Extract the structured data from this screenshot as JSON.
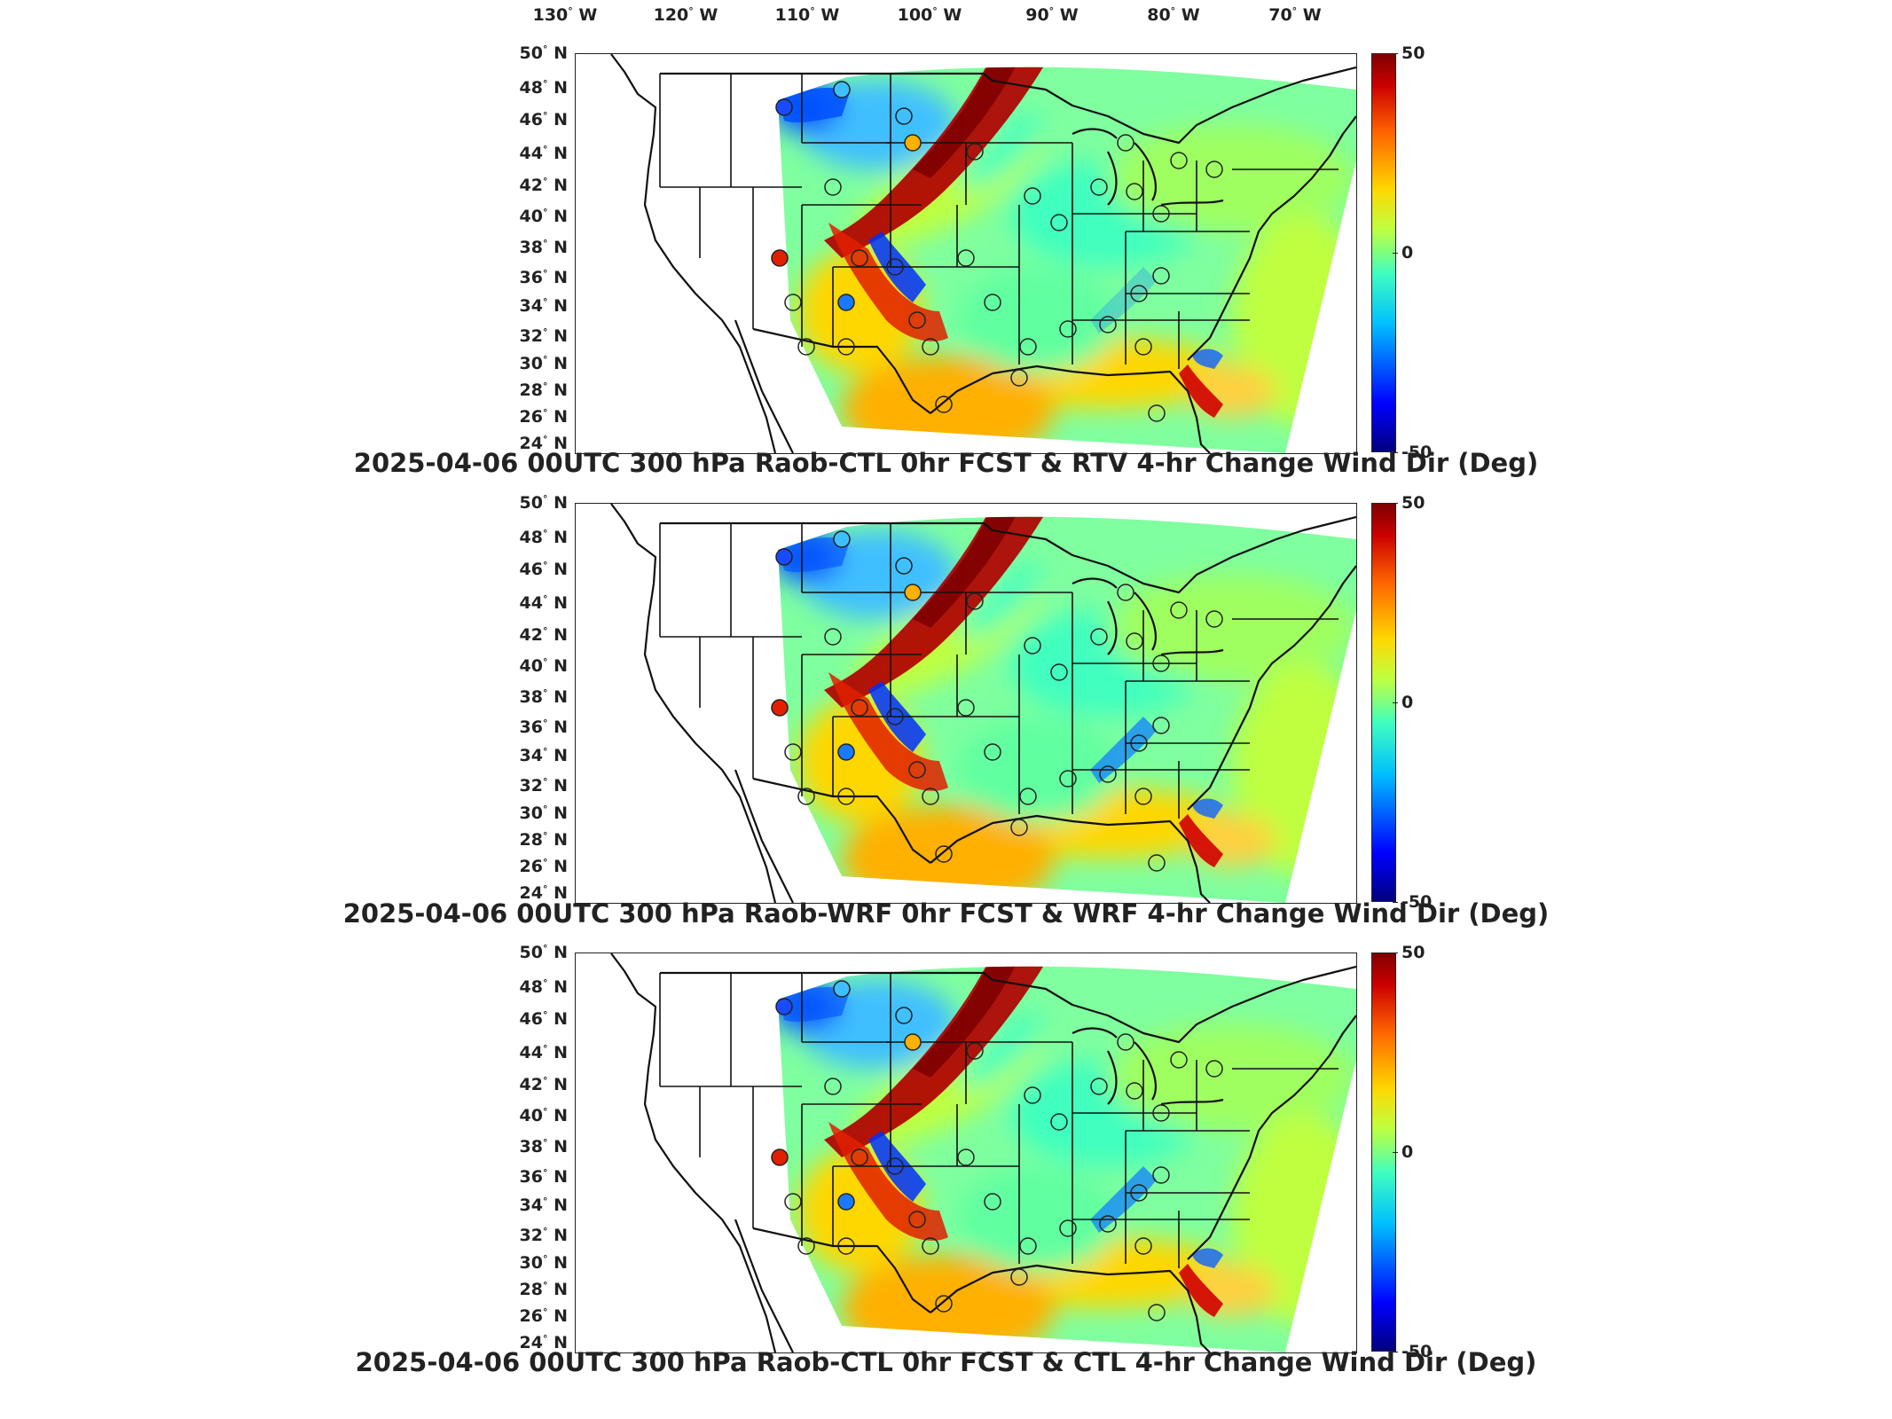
{
  "lon_labels": [
    {
      "deg": "130",
      "hem": "W"
    },
    {
      "deg": "120",
      "hem": "W"
    },
    {
      "deg": "110",
      "hem": "W"
    },
    {
      "deg": "100",
      "hem": "W"
    },
    {
      "deg": "90",
      "hem": "W"
    },
    {
      "deg": "80",
      "hem": "W"
    },
    {
      "deg": "70",
      "hem": "W"
    }
  ],
  "lat_labels": [
    {
      "deg": "50",
      "hem": "N"
    },
    {
      "deg": "48",
      "hem": "N"
    },
    {
      "deg": "46",
      "hem": "N"
    },
    {
      "deg": "44",
      "hem": "N"
    },
    {
      "deg": "42",
      "hem": "N"
    },
    {
      "deg": "40",
      "hem": "N"
    },
    {
      "deg": "38",
      "hem": "N"
    },
    {
      "deg": "36",
      "hem": "N"
    },
    {
      "deg": "34",
      "hem": "N"
    },
    {
      "deg": "32",
      "hem": "N"
    },
    {
      "deg": "30",
      "hem": "N"
    },
    {
      "deg": "28",
      "hem": "N"
    },
    {
      "deg": "26",
      "hem": "N"
    },
    {
      "deg": "24",
      "hem": "N"
    }
  ],
  "colorbar": {
    "max": "50",
    "mid": "0",
    "min": "-50",
    "colormap": "jet"
  },
  "panels": [
    {
      "title": "2025-04-06 00UTC 300 hPa Raob-CTL 0hr FCST & RTV 4-hr Change Wind Dir (Deg)"
    },
    {
      "title": "2025-04-06 00UTC 300 hPa Raob-WRF 0hr FCST & WRF 4-hr Change Wind Dir (Deg)"
    },
    {
      "title": "2025-04-06 00UTC 300 hPa Raob-CTL 0hr FCST & CTL 4-hr Change Wind Dir (Deg)"
    }
  ],
  "colors": {
    "frame": "#222222",
    "state_lines": "#111111",
    "dark_red": "#7f0000",
    "dark_blue": "#00007f"
  }
}
